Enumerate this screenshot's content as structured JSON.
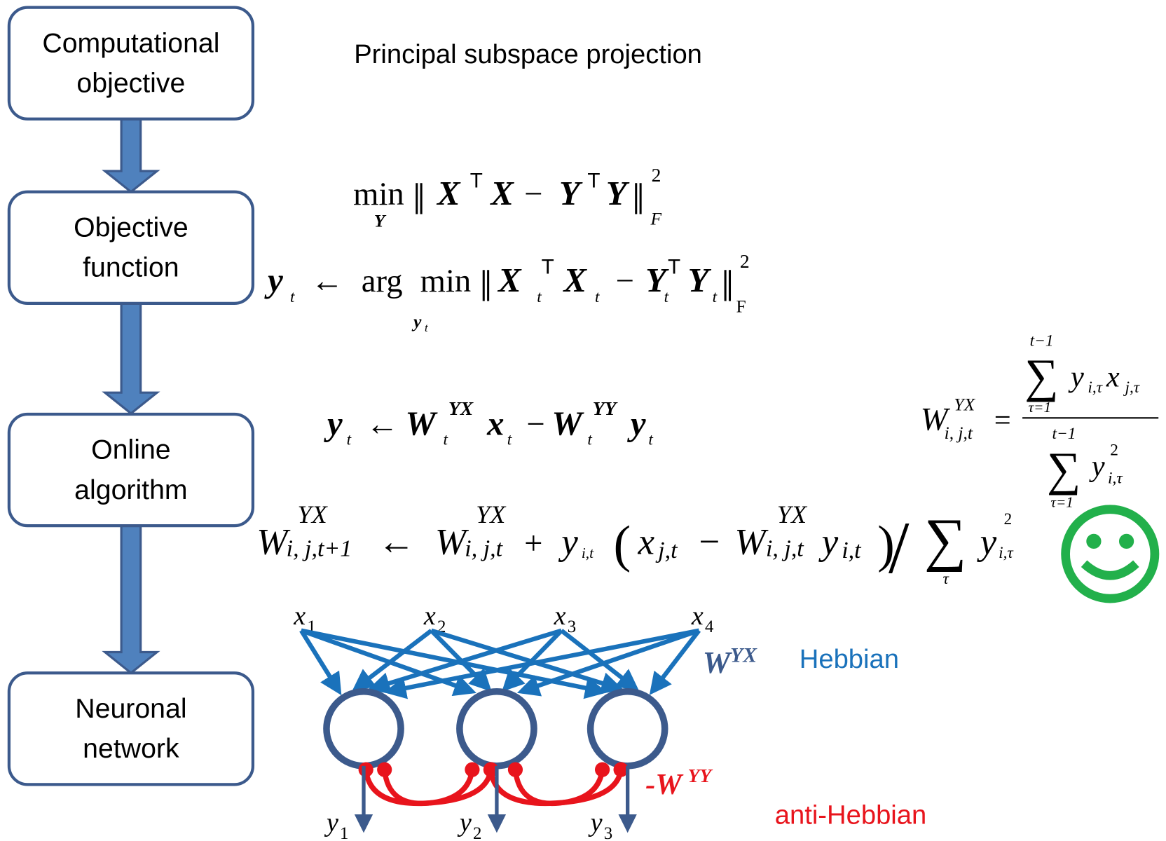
{
  "flow": [
    [
      "Computational",
      "objective"
    ],
    [
      "Objective",
      "function"
    ],
    [
      "Online",
      "algorithm"
    ],
    [
      "Neuronal",
      "network"
    ]
  ],
  "title": "Principal subspace projection",
  "equations": [
    [
      "min",
      "Y",
      "‖",
      "X",
      "T",
      "X",
      "−",
      "Y",
      "T",
      "Y",
      "‖",
      "2",
      "F"
    ],
    [
      "y",
      "t",
      "←",
      "arg",
      "min",
      "y",
      "t",
      "‖",
      "X",
      "t",
      "T",
      "X",
      "t",
      "−",
      "Y",
      "t",
      "T",
      "Y",
      "t",
      "‖",
      "2",
      "F"
    ],
    [
      "y",
      "t",
      "←",
      "W",
      "YX",
      "t",
      "x",
      "t",
      "−",
      "W",
      "YY",
      "t",
      "y",
      "t"
    ],
    [
      "W",
      "YX",
      "i, j,t+1",
      "←",
      "W",
      "YX",
      "i, j,t",
      "+",
      "y",
      "i,t",
      "(",
      "x",
      "j,t",
      "−",
      "W",
      "YX",
      "i, j,t",
      "y",
      "i,t",
      ")",
      "/",
      "∑",
      "τ",
      "y",
      "2",
      "i,τ"
    ],
    [
      "W",
      "YX",
      "i, j,t",
      "=",
      "t−1",
      "∑",
      "τ=1",
      "y",
      "i,τ",
      "x",
      "j,τ",
      "t−1",
      "∑",
      "τ=1",
      "y",
      "2",
      "i,τ"
    ]
  ],
  "network": {
    "inputs": [
      [
        "x",
        "1"
      ],
      [
        "x",
        "2"
      ],
      [
        "x",
        "3"
      ],
      [
        "x",
        "4"
      ]
    ],
    "outputs": [
      [
        "y",
        "1"
      ],
      [
        "y",
        "2"
      ],
      [
        "y",
        "3"
      ]
    ],
    "feedforward_label": [
      "W",
      "YX"
    ],
    "lateral_label": [
      "-W",
      "YY"
    ],
    "hebbian": "Hebbian",
    "anti_hebbian": "anti-Hebbian"
  }
}
